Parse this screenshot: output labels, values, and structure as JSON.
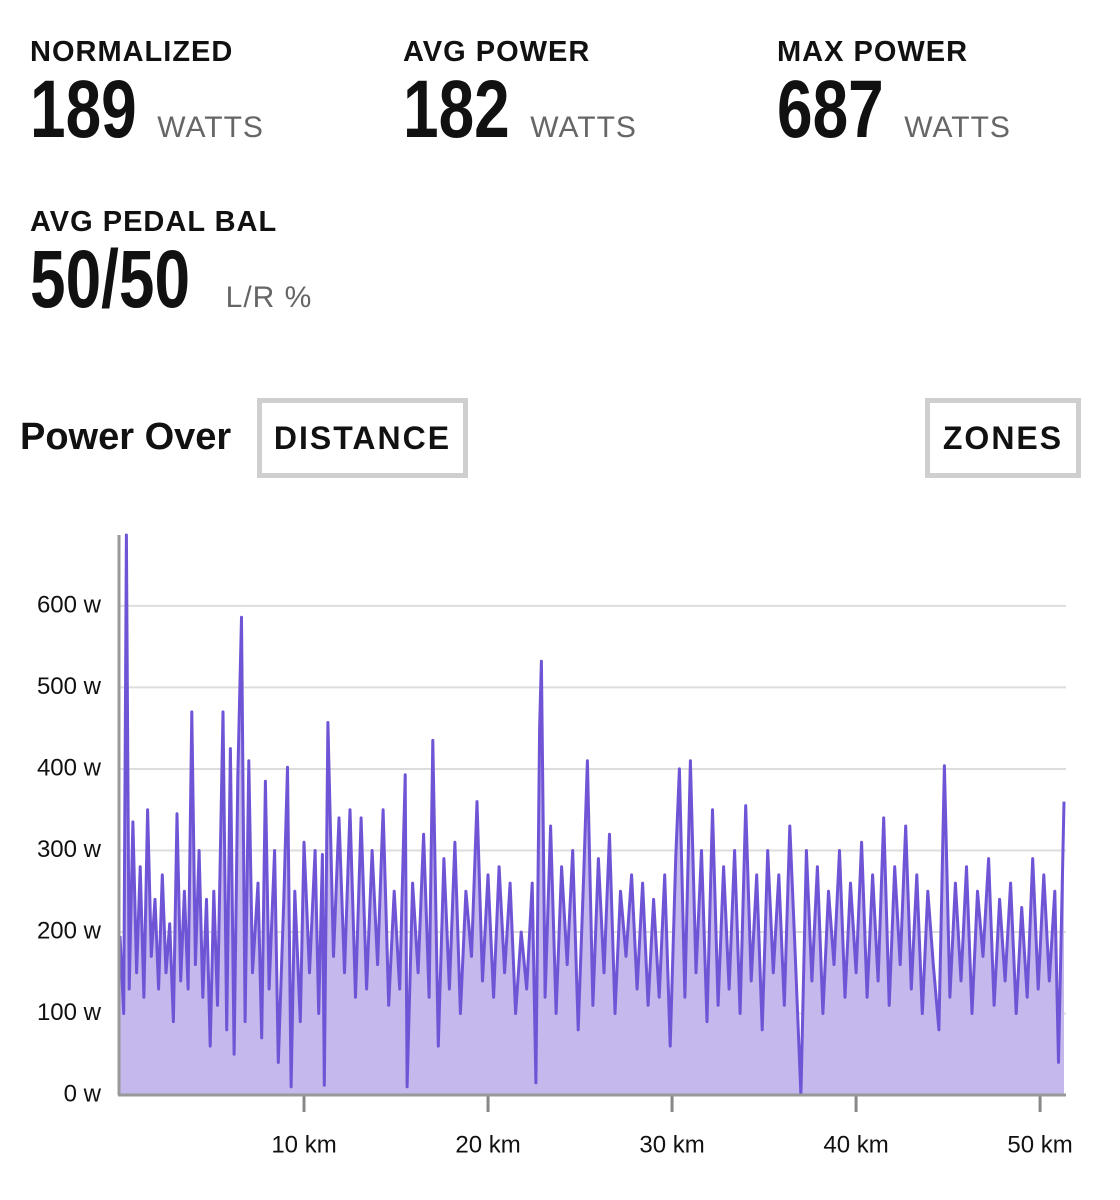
{
  "stats": [
    {
      "label": "NORMALIZED",
      "value": "189",
      "unit": "WATTS"
    },
    {
      "label": "AVG POWER",
      "value": "182",
      "unit": "WATTS"
    },
    {
      "label": "MAX POWER",
      "value": "687",
      "unit": "WATTS"
    },
    {
      "label": "AVG PEDAL BAL",
      "value": "50/50",
      "unit": "L/R %"
    }
  ],
  "controls": {
    "heading": "Power Over",
    "metric_button": "DISTANCE",
    "zones_button": "ZONES"
  },
  "chart_data": {
    "type": "area",
    "color": "#6f55d6",
    "fill": "#c4b8ec",
    "grid": true,
    "xlim": [
      0,
      51.3
    ],
    "ylim": [
      0,
      687
    ],
    "xticks": [
      {
        "value": 10,
        "label": "10 km"
      },
      {
        "value": 20,
        "label": "20 km"
      },
      {
        "value": 30,
        "label": "30 km"
      },
      {
        "value": 40,
        "label": "40 km"
      },
      {
        "value": 50,
        "label": "50 km"
      }
    ],
    "yticks": [
      {
        "value": 0,
        "label": "0 w"
      },
      {
        "value": 100,
        "label": "100 w"
      },
      {
        "value": 200,
        "label": "200 w"
      },
      {
        "value": 300,
        "label": "300 w"
      },
      {
        "value": 400,
        "label": "400 w"
      },
      {
        "value": 500,
        "label": "500 w"
      },
      {
        "value": 600,
        "label": "600 w"
      }
    ],
    "x": [
      0,
      0.2,
      0.35,
      0.5,
      0.7,
      0.9,
      1.1,
      1.3,
      1.5,
      1.7,
      1.9,
      2.1,
      2.3,
      2.5,
      2.7,
      2.9,
      3.1,
      3.3,
      3.5,
      3.7,
      3.9,
      4.1,
      4.3,
      4.5,
      4.7,
      4.9,
      5.1,
      5.3,
      5.6,
      5.8,
      6.0,
      6.2,
      6.4,
      6.6,
      6.8,
      7.0,
      7.2,
      7.5,
      7.7,
      7.9,
      8.1,
      8.4,
      8.6,
      8.9,
      9.1,
      9.3,
      9.5,
      9.8,
      10.0,
      10.3,
      10.6,
      10.8,
      11.0,
      11.1,
      11.3,
      11.6,
      11.9,
      12.2,
      12.5,
      12.8,
      13.1,
      13.4,
      13.7,
      14.0,
      14.3,
      14.6,
      14.9,
      15.2,
      15.5,
      15.6,
      15.9,
      16.2,
      16.5,
      16.8,
      17.0,
      17.3,
      17.6,
      17.9,
      18.2,
      18.5,
      18.8,
      19.1,
      19.4,
      19.7,
      20.0,
      20.3,
      20.6,
      20.9,
      21.2,
      21.5,
      21.8,
      22.1,
      22.4,
      22.6,
      22.8,
      22.9,
      23.1,
      23.4,
      23.7,
      24.0,
      24.3,
      24.6,
      24.9,
      25.2,
      25.4,
      25.7,
      26.0,
      26.3,
      26.6,
      26.9,
      27.2,
      27.5,
      27.8,
      28.1,
      28.4,
      28.7,
      29.0,
      29.3,
      29.6,
      29.9,
      30.2,
      30.4,
      30.7,
      31.0,
      31.3,
      31.6,
      31.9,
      32.2,
      32.5,
      32.8,
      33.1,
      33.4,
      33.7,
      34.0,
      34.3,
      34.6,
      34.9,
      35.2,
      35.5,
      35.8,
      36.1,
      36.4,
      36.7,
      37.0,
      37.3,
      37.6,
      37.9,
      38.2,
      38.5,
      38.8,
      39.1,
      39.4,
      39.7,
      40.0,
      40.3,
      40.6,
      40.9,
      41.2,
      41.5,
      41.8,
      42.1,
      42.4,
      42.7,
      43.0,
      43.3,
      43.6,
      43.9,
      44.2,
      44.5,
      44.8,
      45.1,
      45.4,
      45.7,
      46.0,
      46.3,
      46.6,
      46.9,
      47.2,
      47.5,
      47.8,
      48.1,
      48.4,
      48.7,
      49.0,
      49.3,
      49.6,
      49.9,
      50.2,
      50.5,
      50.8,
      51.0,
      51.3
    ],
    "values": [
      195,
      100,
      687,
      130,
      335,
      150,
      280,
      120,
      350,
      170,
      240,
      130,
      270,
      150,
      210,
      90,
      345,
      140,
      250,
      130,
      470,
      160,
      300,
      120,
      240,
      60,
      250,
      110,
      470,
      80,
      425,
      50,
      390,
      586,
      90,
      410,
      150,
      260,
      70,
      385,
      130,
      300,
      40,
      240,
      402,
      10,
      250,
      90,
      310,
      150,
      300,
      100,
      295,
      12,
      457,
      170,
      340,
      150,
      350,
      120,
      340,
      130,
      300,
      160,
      350,
      110,
      250,
      130,
      393,
      10,
      260,
      150,
      320,
      120,
      435,
      60,
      290,
      130,
      310,
      100,
      250,
      170,
      360,
      140,
      270,
      120,
      280,
      150,
      260,
      100,
      200,
      130,
      260,
      15,
      450,
      532,
      120,
      330,
      100,
      280,
      160,
      300,
      80,
      270,
      410,
      110,
      290,
      150,
      320,
      100,
      250,
      170,
      270,
      130,
      260,
      110,
      240,
      120,
      270,
      60,
      290,
      400,
      120,
      410,
      150,
      300,
      90,
      350,
      110,
      280,
      130,
      300,
      100,
      355,
      140,
      270,
      80,
      300,
      150,
      270,
      110,
      330,
      170,
      0,
      300,
      140,
      280,
      100,
      250,
      160,
      300,
      120,
      260,
      150,
      310,
      120,
      270,
      140,
      340,
      110,
      280,
      160,
      330,
      130,
      270,
      100,
      250,
      160,
      80,
      404,
      120,
      260,
      140,
      280,
      100,
      250,
      170,
      290,
      110,
      240,
      140,
      260,
      100,
      230,
      120,
      290,
      130,
      270,
      140,
      250,
      40,
      360
    ]
  }
}
